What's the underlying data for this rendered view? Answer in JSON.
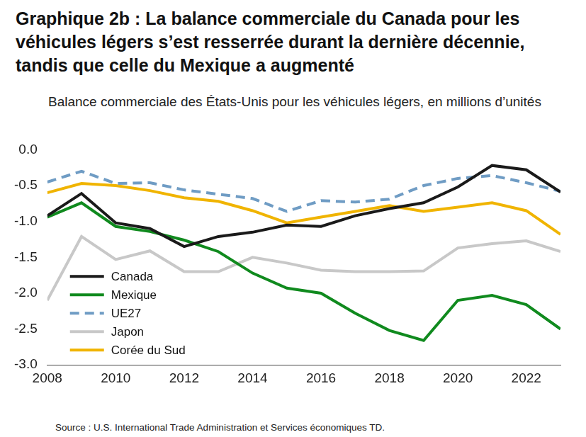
{
  "chart_data": {
    "type": "line",
    "title": "Graphique 2b : La balance commerciale du Canada pour les véhicules légers s’est resserrée durant la dernière décennie, tandis que celle du Mexique a augmenté",
    "subtitle": "Balance commerciale des États-Unis pour les véhicules légers, en millions d’unités",
    "source": "Source : U.S. International Trade Administration  et Services économiques TD.",
    "x": [
      2008,
      2009,
      2010,
      2011,
      2012,
      2013,
      2014,
      2015,
      2016,
      2017,
      2018,
      2019,
      2020,
      2021,
      2022,
      2023
    ],
    "series": [
      {
        "name": "Canada",
        "color": "#1a1a1a",
        "line_style": "solid",
        "values": [
          -0.92,
          -0.61,
          -1.02,
          -1.1,
          -1.35,
          -1.21,
          -1.15,
          -1.05,
          -1.07,
          -0.92,
          -0.82,
          -0.74,
          -0.52,
          -0.22,
          -0.28,
          -0.59
        ]
      },
      {
        "name": "Mexique",
        "color": "#108a1e",
        "line_style": "solid",
        "values": [
          -0.94,
          -0.74,
          -1.07,
          -1.14,
          -1.26,
          -1.42,
          -1.72,
          -1.93,
          -2.0,
          -2.28,
          -2.52,
          -2.66,
          -2.1,
          -2.03,
          -2.16,
          -2.5
        ]
      },
      {
        "name": "UE27",
        "color": "#6f9cc4",
        "line_style": "dashed",
        "values": [
          -0.45,
          -0.3,
          -0.47,
          -0.46,
          -0.56,
          -0.62,
          -0.68,
          -0.86,
          -0.71,
          -0.73,
          -0.69,
          -0.5,
          -0.4,
          -0.36,
          -0.46,
          -0.58
        ]
      },
      {
        "name": "Japon",
        "color": "#c8c8c8",
        "line_style": "solid",
        "values": [
          -2.1,
          -1.21,
          -1.53,
          -1.41,
          -1.7,
          -1.7,
          -1.5,
          -1.58,
          -1.68,
          -1.7,
          -1.7,
          -1.69,
          -1.37,
          -1.31,
          -1.27,
          -1.42
        ]
      },
      {
        "name": "Corée du Sud",
        "color": "#f0b400",
        "line_style": "solid",
        "values": [
          -0.6,
          -0.47,
          -0.5,
          -0.57,
          -0.67,
          -0.72,
          -0.85,
          -1.02,
          -0.94,
          -0.86,
          -0.78,
          -0.86,
          -0.8,
          -0.74,
          -0.85,
          -1.18
        ]
      }
    ],
    "xlim": [
      2008,
      2023
    ],
    "xticks": [
      2008,
      2010,
      2012,
      2014,
      2016,
      2018,
      2020,
      2022
    ],
    "ylim": [
      -3,
      0
    ],
    "yticks": [
      {
        "value": -3,
        "label": "-3.0"
      },
      {
        "value": -2.5,
        "label": "-2.5"
      },
      {
        "value": -2,
        "label": "-2.0"
      },
      {
        "value": -1.5,
        "label": "-1.5"
      },
      {
        "value": -1,
        "label": "-1.0"
      },
      {
        "value": -0.5,
        "label": "-0.5"
      },
      {
        "value": 0,
        "label": "0.0"
      }
    ],
    "grid": false,
    "legend": "lower left"
  }
}
